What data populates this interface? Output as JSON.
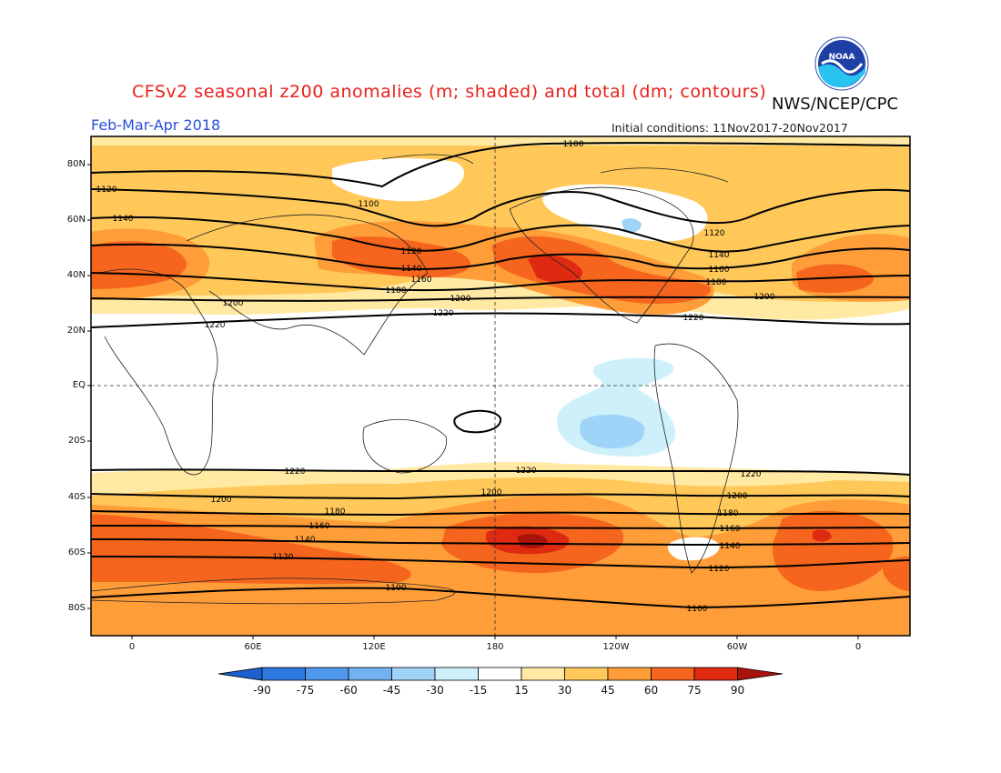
{
  "title": "CFSv2 seasonal z200 anomalies (m; shaded) and total (dm; contours)",
  "org": "NWS/NCEP/CPC",
  "period": "Feb-Mar-Apr 2018",
  "initial_conditions_label": "Initial conditions:",
  "initial_conditions_value": "11Nov2017-20Nov2017",
  "logo_text": "NOAA",
  "lat_labels": [
    "80N",
    "60N",
    "40N",
    "20N",
    "EQ",
    "20S",
    "40S",
    "60S",
    "80S"
  ],
  "lon_labels": [
    "0",
    "60E",
    "120E",
    "180",
    "120W",
    "60W",
    "0"
  ],
  "colorbar": {
    "ticks": [
      "-90",
      "-75",
      "-60",
      "-45",
      "-30",
      "-15",
      "15",
      "30",
      "45",
      "60",
      "75",
      "90"
    ],
    "colors": [
      "#1c5fcf",
      "#2f7ae0",
      "#4f97ea",
      "#72b2f0",
      "#9fd3f7",
      "#cdf0fa",
      "#ffffff",
      "#ffe9a3",
      "#ffc859",
      "#ff9d38",
      "#f5651e",
      "#dd2a10",
      "#a8130c"
    ]
  },
  "contour_labels": {
    "c1100": "1100",
    "c1120": "1120",
    "c1140": "1140",
    "c1160": "1160",
    "c1180": "1180",
    "c1200": "1200",
    "c1220": "1220"
  }
}
